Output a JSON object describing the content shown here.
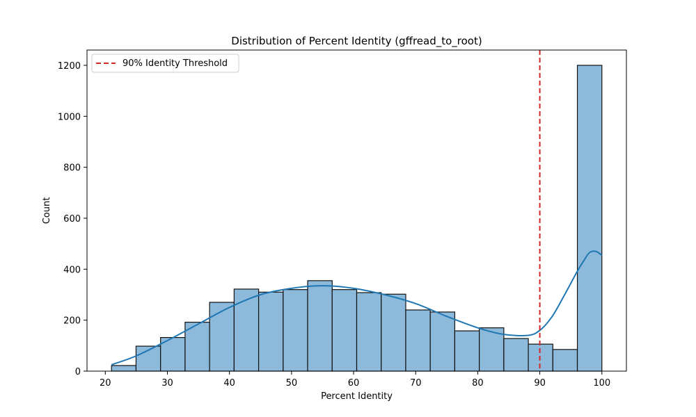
{
  "chart_data": {
    "type": "bar",
    "title": "Distribution of Percent Identity (gffread_to_root)",
    "xlabel": "Percent Identity",
    "ylabel": "Count",
    "xlim": [
      17.05,
      103.95
    ],
    "ylim": [
      0,
      1260
    ],
    "xticks": [
      20,
      30,
      40,
      50,
      60,
      70,
      80,
      90,
      100
    ],
    "yticks": [
      0,
      200,
      400,
      600,
      800,
      1000,
      1200
    ],
    "bins": [
      {
        "start": 21.0,
        "end": 24.95,
        "count": 22
      },
      {
        "start": 24.95,
        "end": 28.9,
        "count": 98
      },
      {
        "start": 28.9,
        "end": 32.85,
        "count": 132
      },
      {
        "start": 32.85,
        "end": 36.8,
        "count": 192
      },
      {
        "start": 36.8,
        "end": 40.75,
        "count": 270
      },
      {
        "start": 40.75,
        "end": 44.7,
        "count": 322
      },
      {
        "start": 44.7,
        "end": 48.65,
        "count": 310
      },
      {
        "start": 48.65,
        "end": 52.6,
        "count": 320
      },
      {
        "start": 52.6,
        "end": 56.55,
        "count": 355
      },
      {
        "start": 56.55,
        "end": 60.5,
        "count": 320
      },
      {
        "start": 60.5,
        "end": 64.45,
        "count": 308
      },
      {
        "start": 64.45,
        "end": 68.4,
        "count": 302
      },
      {
        "start": 68.4,
        "end": 72.35,
        "count": 240
      },
      {
        "start": 72.35,
        "end": 76.3,
        "count": 232
      },
      {
        "start": 76.3,
        "end": 80.25,
        "count": 158
      },
      {
        "start": 80.25,
        "end": 84.2,
        "count": 170
      },
      {
        "start": 84.2,
        "end": 88.15,
        "count": 128
      },
      {
        "start": 88.15,
        "end": 92.1,
        "count": 106
      },
      {
        "start": 92.1,
        "end": 96.05,
        "count": 85
      },
      {
        "start": 96.05,
        "end": 100.0,
        "count": 1200
      }
    ],
    "kde": {
      "x": [
        21,
        25,
        30,
        35,
        40,
        45,
        50,
        55,
        60,
        65,
        70,
        75,
        80,
        84,
        88,
        90,
        92,
        94,
        96,
        97,
        98,
        99,
        100
      ],
      "y": [
        25,
        60,
        120,
        185,
        250,
        300,
        325,
        335,
        325,
        300,
        265,
        215,
        170,
        145,
        140,
        160,
        215,
        300,
        390,
        430,
        465,
        470,
        455
      ]
    },
    "threshold": {
      "x": 90,
      "label": "90% Identity Threshold",
      "color": "#d62728"
    },
    "legend": {
      "position": "top-left"
    },
    "colors": {
      "bar_fill": "#8db9db",
      "bar_edge": "#111111",
      "kde_line": "#1f77b4"
    },
    "grid": false
  }
}
